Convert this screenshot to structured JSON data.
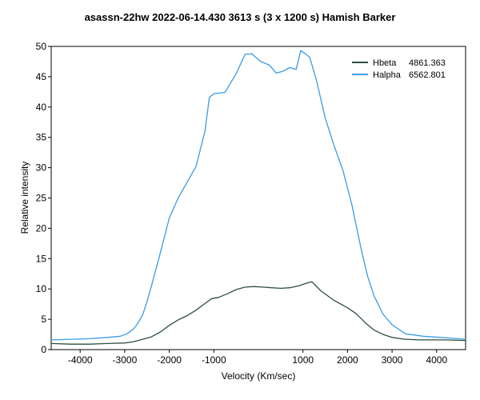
{
  "chart_data": {
    "type": "line",
    "title": "asassn-22hw  2022-06-14.430  3613 s (3 x 1200 s)  Hamish Barker",
    "xlabel": "Velocity (Km/sec)",
    "ylabel": "Relative intensity",
    "xlim": [
      -4650,
      4650
    ],
    "ylim": [
      0,
      50
    ],
    "x_ticks": [
      -4000,
      -3000,
      -2000,
      -1000,
      1000,
      2000,
      3000,
      4000
    ],
    "x_tick_labels": [
      "-4000",
      "-3000",
      "-2000",
      "-1000",
      "1000",
      "2000",
      "3000",
      "4000"
    ],
    "y_ticks": [
      0,
      5,
      10,
      15,
      20,
      25,
      30,
      35,
      40,
      45,
      50
    ],
    "legend_position": "top-right",
    "colors": {
      "hbeta": "#2f4f3f",
      "halpha": "#3a9be6"
    },
    "series": [
      {
        "name": "Hbeta",
        "label_value": "4861.363",
        "color": "#2f4f3f",
        "x": [
          -4650,
          -4200,
          -3800,
          -3400,
          -3000,
          -2800,
          -2600,
          -2400,
          -2200,
          -2000,
          -1800,
          -1600,
          -1400,
          -1200,
          -1050,
          -900,
          -700,
          -500,
          -300,
          -100,
          100,
          300,
          500,
          700,
          900,
          1100,
          1200,
          1400,
          1700,
          2000,
          2200,
          2400,
          2600,
          2800,
          3000,
          3300,
          3600,
          3900,
          4200,
          4650
        ],
        "y": [
          1.0,
          0.9,
          0.9,
          1.0,
          1.1,
          1.3,
          1.7,
          2.1,
          2.9,
          4.0,
          4.9,
          5.6,
          6.5,
          7.6,
          8.4,
          8.6,
          9.2,
          9.9,
          10.3,
          10.4,
          10.3,
          10.2,
          10.1,
          10.2,
          10.5,
          11.0,
          11.2,
          9.7,
          8.1,
          6.9,
          5.9,
          4.4,
          3.2,
          2.5,
          2.0,
          1.7,
          1.6,
          1.6,
          1.6,
          1.5
        ]
      },
      {
        "name": "Halpha",
        "label_value": "6562.801",
        "color": "#3a9be6",
        "x": [
          -4650,
          -4200,
          -3800,
          -3400,
          -3100,
          -2950,
          -2800,
          -2700,
          -2600,
          -2500,
          -2400,
          -2200,
          -2000,
          -1800,
          -1600,
          -1400,
          -1200,
          -1100,
          -1000,
          -900,
          -750,
          -500,
          -300,
          -150,
          50,
          250,
          400,
          550,
          700,
          850,
          950,
          1050,
          1150,
          1300,
          1500,
          1700,
          1900,
          2100,
          2300,
          2450,
          2600,
          2800,
          3000,
          3300,
          3700,
          4100,
          4650
        ],
        "y": [
          1.6,
          1.7,
          1.8,
          2.0,
          2.2,
          2.6,
          3.4,
          4.4,
          5.7,
          7.9,
          10.5,
          16.0,
          21.7,
          25.0,
          27.6,
          30.2,
          36.0,
          41.6,
          42.2,
          42.3,
          42.4,
          45.5,
          48.7,
          48.8,
          47.5,
          46.9,
          45.6,
          45.9,
          46.5,
          46.2,
          49.3,
          48.8,
          48.2,
          44.5,
          38.2,
          33.6,
          29.5,
          23.8,
          16.8,
          12.1,
          8.8,
          5.8,
          4.1,
          2.6,
          2.2,
          2.0,
          1.7
        ]
      }
    ]
  }
}
